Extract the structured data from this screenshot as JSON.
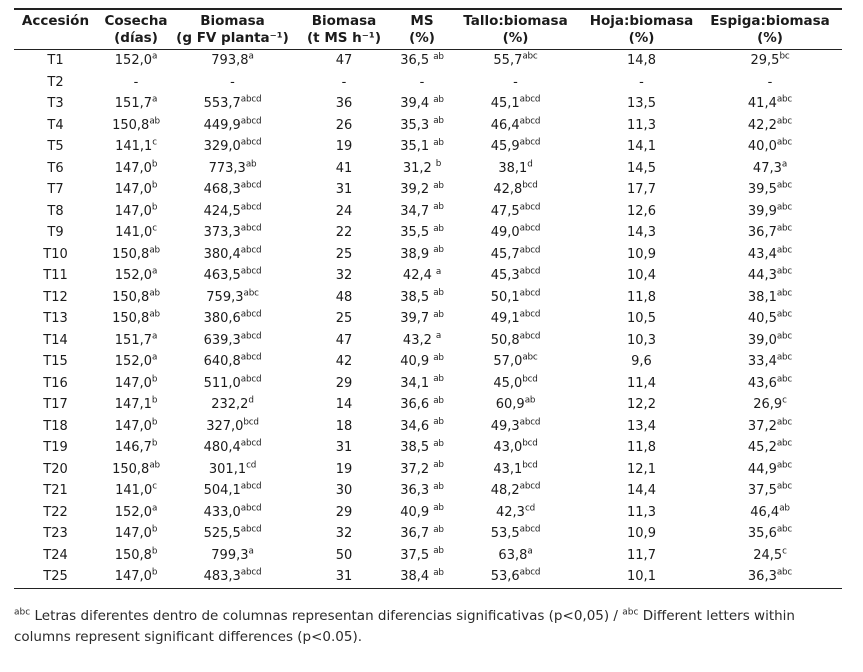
{
  "page": {
    "background_color": "#ffffff",
    "text_color": "#1b1b1b",
    "border_color": "#222222"
  },
  "table": {
    "columns": [
      {
        "l1": "Accesión",
        "l2": ""
      },
      {
        "l1": "Cosecha",
        "l2": "(días)"
      },
      {
        "l1": "Biomasa",
        "l2": "(g FV planta⁻¹)"
      },
      {
        "l1": "Biomasa",
        "l2": "(t MS h⁻¹)"
      },
      {
        "l1": "MS",
        "l2": "(%)"
      },
      {
        "l1": "Tallo:biomasa",
        "l2": "(%)"
      },
      {
        "l1": "Hoja:biomasa",
        "l2": "(%)"
      },
      {
        "l1": "Espiga:biomasa",
        "l2": "(%)"
      }
    ],
    "rows": [
      {
        "id": "T1",
        "cells": [
          [
            "152,0",
            "a"
          ],
          [
            "793,8",
            "a"
          ],
          [
            "47",
            ""
          ],
          [
            "36,5",
            "ab"
          ],
          [
            "55,7",
            "abc"
          ],
          [
            "14,8",
            ""
          ],
          [
            "29,5",
            "bc"
          ]
        ]
      },
      {
        "id": "T2",
        "cells": [
          [
            "-",
            ""
          ],
          [
            "-",
            ""
          ],
          [
            "-",
            ""
          ],
          [
            "-",
            ""
          ],
          [
            "-",
            ""
          ],
          [
            "-",
            ""
          ],
          [
            "-",
            ""
          ]
        ]
      },
      {
        "id": "T3",
        "cells": [
          [
            "151,7",
            "a"
          ],
          [
            "553,7",
            "abcd"
          ],
          [
            "36",
            ""
          ],
          [
            "39,4",
            "ab"
          ],
          [
            "45,1",
            "abcd"
          ],
          [
            "13,5",
            ""
          ],
          [
            "41,4",
            "abc"
          ]
        ]
      },
      {
        "id": "T4",
        "cells": [
          [
            "150,8",
            "ab"
          ],
          [
            "449,9",
            "abcd"
          ],
          [
            "26",
            ""
          ],
          [
            "35,3",
            "ab"
          ],
          [
            "46,4",
            "abcd"
          ],
          [
            "11,3",
            ""
          ],
          [
            "42,2",
            "abc"
          ]
        ]
      },
      {
        "id": "T5",
        "cells": [
          [
            "141,1",
            "c"
          ],
          [
            "329,0",
            "abcd"
          ],
          [
            "19",
            ""
          ],
          [
            "35,1",
            "ab"
          ],
          [
            "45,9",
            "abcd"
          ],
          [
            "14,1",
            ""
          ],
          [
            "40,0",
            "abc"
          ]
        ]
      },
      {
        "id": "T6",
        "cells": [
          [
            "147,0",
            "b"
          ],
          [
            "773,3",
            "ab"
          ],
          [
            "41",
            ""
          ],
          [
            "31,2",
            "b"
          ],
          [
            "38,1",
            "d"
          ],
          [
            "14,5",
            ""
          ],
          [
            "47,3",
            "a"
          ]
        ]
      },
      {
        "id": "T7",
        "cells": [
          [
            "147,0",
            "b"
          ],
          [
            "468,3",
            "abcd"
          ],
          [
            "31",
            ""
          ],
          [
            "39,2",
            "ab"
          ],
          [
            "42,8",
            "bcd"
          ],
          [
            "17,7",
            ""
          ],
          [
            "39,5",
            "abc"
          ]
        ]
      },
      {
        "id": "T8",
        "cells": [
          [
            "147,0",
            "b"
          ],
          [
            "424,5",
            "abcd"
          ],
          [
            "24",
            ""
          ],
          [
            "34,7",
            "ab"
          ],
          [
            "47,5",
            "abcd"
          ],
          [
            "12,6",
            ""
          ],
          [
            "39,9",
            "abc"
          ]
        ]
      },
      {
        "id": "T9",
        "cells": [
          [
            "141,0",
            "c"
          ],
          [
            "373,3",
            "abcd"
          ],
          [
            "22",
            ""
          ],
          [
            "35,5",
            "ab"
          ],
          [
            "49,0",
            "abcd"
          ],
          [
            "14,3",
            ""
          ],
          [
            "36,7",
            "abc"
          ]
        ]
      },
      {
        "id": "T10",
        "cells": [
          [
            "150,8",
            "ab"
          ],
          [
            "380,4",
            "abcd"
          ],
          [
            "25",
            ""
          ],
          [
            "38,9",
            "ab"
          ],
          [
            "45,7",
            "abcd"
          ],
          [
            "10,9",
            ""
          ],
          [
            "43,4",
            "abc"
          ]
        ]
      },
      {
        "id": "T11",
        "cells": [
          [
            "152,0",
            "a"
          ],
          [
            "463,5",
            "abcd"
          ],
          [
            "32",
            ""
          ],
          [
            "42,4",
            "a"
          ],
          [
            "45,3",
            "abcd"
          ],
          [
            "10,4",
            ""
          ],
          [
            "44,3",
            "abc"
          ]
        ]
      },
      {
        "id": "T12",
        "cells": [
          [
            "150,8",
            "ab"
          ],
          [
            "759,3",
            "abc"
          ],
          [
            "48",
            ""
          ],
          [
            "38,5",
            "ab"
          ],
          [
            "50,1",
            "abcd"
          ],
          [
            "11,8",
            ""
          ],
          [
            "38,1",
            "abc"
          ]
        ]
      },
      {
        "id": "T13",
        "cells": [
          [
            "150,8",
            "ab"
          ],
          [
            "380,6",
            "abcd"
          ],
          [
            "25",
            ""
          ],
          [
            "39,7",
            "ab"
          ],
          [
            "49,1",
            "abcd"
          ],
          [
            "10,5",
            ""
          ],
          [
            "40,5",
            "abc"
          ]
        ]
      },
      {
        "id": "T14",
        "cells": [
          [
            "151,7",
            "a"
          ],
          [
            "639,3",
            "abcd"
          ],
          [
            "47",
            ""
          ],
          [
            "43,2",
            "a"
          ],
          [
            "50,8",
            "abcd"
          ],
          [
            "10,3",
            ""
          ],
          [
            "39,0",
            "abc"
          ]
        ]
      },
      {
        "id": "T15",
        "cells": [
          [
            "152,0",
            "a"
          ],
          [
            "640,8",
            "abcd"
          ],
          [
            "42",
            ""
          ],
          [
            "40,9",
            "ab"
          ],
          [
            "57,0",
            "abc"
          ],
          [
            "9,6",
            ""
          ],
          [
            "33,4",
            "abc"
          ]
        ]
      },
      {
        "id": "T16",
        "cells": [
          [
            "147,0",
            "b"
          ],
          [
            "511,0",
            "abcd"
          ],
          [
            "29",
            ""
          ],
          [
            "34,1",
            "ab"
          ],
          [
            "45,0",
            "bcd"
          ],
          [
            "11,4",
            ""
          ],
          [
            "43,6",
            "abc"
          ]
        ]
      },
      {
        "id": "T17",
        "cells": [
          [
            "147,1",
            "b"
          ],
          [
            "232,2",
            "d"
          ],
          [
            "14",
            ""
          ],
          [
            "36,6",
            "ab"
          ],
          [
            "60,9",
            "ab"
          ],
          [
            "12,2",
            ""
          ],
          [
            "26,9",
            "c"
          ]
        ]
      },
      {
        "id": "T18",
        "cells": [
          [
            "147,0",
            "b"
          ],
          [
            "327,0",
            "bcd"
          ],
          [
            "18",
            ""
          ],
          [
            "34,6",
            "ab"
          ],
          [
            "49,3",
            "abcd"
          ],
          [
            "13,4",
            ""
          ],
          [
            "37,2",
            "abc"
          ]
        ]
      },
      {
        "id": "T19",
        "cells": [
          [
            "146,7",
            "b"
          ],
          [
            "480,4",
            "abcd"
          ],
          [
            "31",
            ""
          ],
          [
            "38,5",
            "ab"
          ],
          [
            "43,0",
            "bcd"
          ],
          [
            "11,8",
            ""
          ],
          [
            "45,2",
            "abc"
          ]
        ]
      },
      {
        "id": "T20",
        "cells": [
          [
            "150,8",
            "ab"
          ],
          [
            "301,1",
            "cd"
          ],
          [
            "19",
            ""
          ],
          [
            "37,2",
            "ab"
          ],
          [
            "43,1",
            "bcd"
          ],
          [
            "12,1",
            ""
          ],
          [
            "44,9",
            "abc"
          ]
        ]
      },
      {
        "id": "T21",
        "cells": [
          [
            "141,0",
            "c"
          ],
          [
            "504,1",
            "abcd"
          ],
          [
            "30",
            ""
          ],
          [
            "36,3",
            "ab"
          ],
          [
            "48,2",
            "abcd"
          ],
          [
            "14,4",
            ""
          ],
          [
            "37,5",
            "abc"
          ]
        ]
      },
      {
        "id": "T22",
        "cells": [
          [
            "152,0",
            "a"
          ],
          [
            "433,0",
            "abcd"
          ],
          [
            "29",
            ""
          ],
          [
            "40,9",
            "ab"
          ],
          [
            "42,3",
            "cd"
          ],
          [
            "11,3",
            ""
          ],
          [
            "46,4",
            "ab"
          ]
        ]
      },
      {
        "id": "T23",
        "cells": [
          [
            "147,0",
            "b"
          ],
          [
            "525,5",
            "abcd"
          ],
          [
            "32",
            ""
          ],
          [
            "36,7",
            "ab"
          ],
          [
            "53,5",
            "abcd"
          ],
          [
            "10,9",
            ""
          ],
          [
            "35,6",
            "abc"
          ]
        ]
      },
      {
        "id": "T24",
        "cells": [
          [
            "150,8",
            "b"
          ],
          [
            "799,3",
            "a"
          ],
          [
            "50",
            ""
          ],
          [
            "37,5",
            "ab"
          ],
          [
            "63,8",
            "a"
          ],
          [
            "11,7",
            ""
          ],
          [
            "24,5",
            "c"
          ]
        ]
      },
      {
        "id": "T25",
        "cells": [
          [
            "147,0",
            "b"
          ],
          [
            "483,3",
            "abcd"
          ],
          [
            "31",
            ""
          ],
          [
            "38,4",
            "ab"
          ],
          [
            "53,6",
            "abcd"
          ],
          [
            "10,1",
            ""
          ],
          [
            "36,3",
            "abc"
          ]
        ]
      }
    ]
  },
  "footnote": {
    "segments": [
      {
        "sup": "abc"
      },
      {
        "text": " Letras diferentes dentro de columnas representan diferencias significativas (p<0,05) / "
      },
      {
        "sup": "abc"
      },
      {
        "text": " Different letters within columns represent significant differences (p<0.05)."
      }
    ]
  }
}
